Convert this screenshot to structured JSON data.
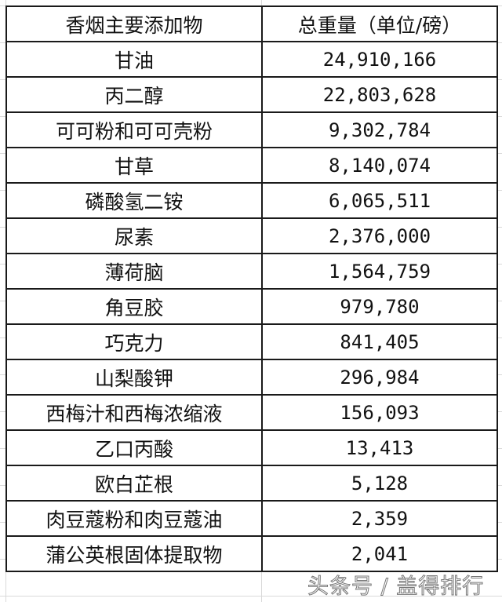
{
  "headers": {
    "additive": "香烟主要添加物",
    "weight": "总重量（单位/磅）"
  },
  "rows": [
    {
      "name": "甘油",
      "value": "24,910,166"
    },
    {
      "name": "丙二醇",
      "value": "22,803,628"
    },
    {
      "name": "可可粉和可可壳粉",
      "value": "9,302,784"
    },
    {
      "name": "甘草",
      "value": "8,140,074"
    },
    {
      "name": "磷酸氢二铵",
      "value": "6,065,511"
    },
    {
      "name": "尿素",
      "value": "2,376,000"
    },
    {
      "name": "薄荷脑",
      "value": "1,564,759"
    },
    {
      "name": "角豆胶",
      "value": "979,780"
    },
    {
      "name": "巧克力",
      "value": "841,405"
    },
    {
      "name": "山梨酸钾",
      "value": "296,984"
    },
    {
      "name": "西梅汁和西梅浓缩液",
      "value": "156,093"
    },
    {
      "name": "乙口丙酸",
      "value": "13,413"
    },
    {
      "name": "欧白芷根",
      "value": "5,128"
    },
    {
      "name": "肉豆蔻粉和肉豆蔻油",
      "value": "2,359"
    },
    {
      "name": "蒲公英根固体提取物",
      "value": "2,041"
    }
  ],
  "watermark": "头条号 / 盖得排行"
}
